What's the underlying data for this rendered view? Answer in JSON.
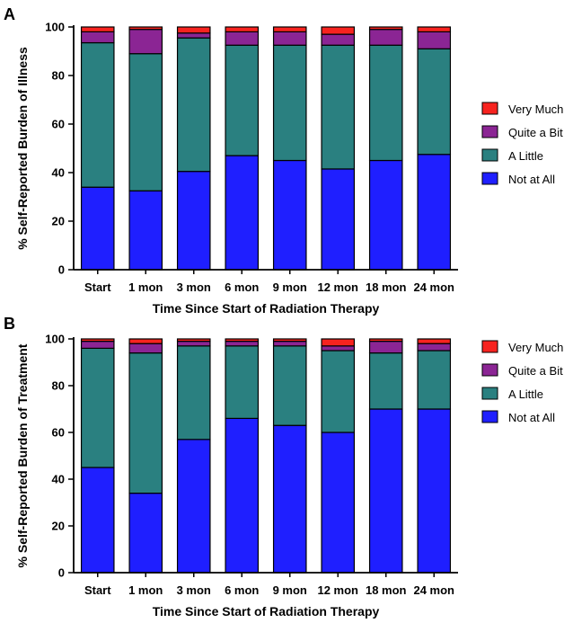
{
  "chart_data": [
    {
      "type": "bar",
      "stacked": true,
      "panel_label": "A",
      "title": "",
      "xlabel": "Time Since Start of Radiation Therapy",
      "ylabel": "% Self-Reported Burden of Illness",
      "categories": [
        "Start",
        "1 mon",
        "3 mon",
        "6 mon",
        "9 mon",
        "12 mon",
        "18 mon",
        "24 mon"
      ],
      "ylim": [
        0,
        100
      ],
      "yticks": [
        0,
        20,
        40,
        60,
        80,
        100
      ],
      "legend_position": "right",
      "series": [
        {
          "name": "Not at All",
          "color": "#1f1fff",
          "values": [
            34,
            32.5,
            40.5,
            47,
            45,
            41.5,
            45,
            47.5
          ]
        },
        {
          "name": "A Little",
          "color": "#2a8080",
          "values": [
            59.5,
            56.5,
            55,
            45.5,
            47.5,
            51,
            47.5,
            43.5
          ]
        },
        {
          "name": "Quite a Bit",
          "color": "#8b2594",
          "values": [
            4.5,
            10,
            2,
            5.5,
            5.5,
            4.5,
            6.5,
            7
          ]
        },
        {
          "name": "Very Much",
          "color": "#f7231f",
          "values": [
            2,
            1,
            2.5,
            2,
            2,
            3,
            1,
            2
          ]
        }
      ]
    },
    {
      "type": "bar",
      "stacked": true,
      "panel_label": "B",
      "title": "",
      "xlabel": "Time Since Start of Radiation Therapy",
      "ylabel": "% Self-Reported Burden of Treatment",
      "categories": [
        "Start",
        "1 mon",
        "3 mon",
        "6 mon",
        "9 mon",
        "12 mon",
        "18 mon",
        "24 mon"
      ],
      "ylim": [
        0,
        100
      ],
      "yticks": [
        0,
        20,
        40,
        60,
        80,
        100
      ],
      "legend_position": "right",
      "series": [
        {
          "name": "Not at All",
          "color": "#1f1fff",
          "values": [
            45,
            34,
            57,
            66,
            63,
            60,
            70,
            70
          ]
        },
        {
          "name": "A Little",
          "color": "#2a8080",
          "values": [
            51,
            60,
            40,
            31,
            34,
            35,
            24,
            25
          ]
        },
        {
          "name": "Quite a Bit",
          "color": "#8b2594",
          "values": [
            3,
            4,
            2,
            2,
            2,
            2,
            5,
            3
          ]
        },
        {
          "name": "Very Much",
          "color": "#f7231f",
          "values": [
            1,
            2,
            1,
            1,
            1,
            3,
            1,
            2
          ]
        }
      ]
    }
  ]
}
